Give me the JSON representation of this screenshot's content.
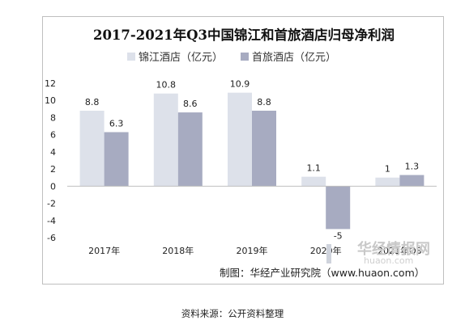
{
  "chart_data": {
    "type": "bar",
    "title": "2017-2021年Q3中国锦江和首旅酒店归母净利润",
    "categories": [
      "2017年",
      "2018年",
      "2019年",
      "2020年",
      "2021年Q3"
    ],
    "series": [
      {
        "name": "锦江酒店（亿元）",
        "values": [
          8.8,
          10.8,
          10.9,
          1.1,
          1
        ],
        "labels": [
          "8.8",
          "10.8",
          "10.9",
          "1.1",
          "1"
        ],
        "color": "#dde1ea"
      },
      {
        "name": "首旅酒店（亿元）",
        "values": [
          6.3,
          8.6,
          8.8,
          -5,
          1.3
        ],
        "labels": [
          "6.3",
          "8.6",
          "8.8",
          "-5",
          "1.3"
        ],
        "color": "#a7abc1"
      }
    ],
    "ylim": [
      -6,
      12
    ],
    "yticks": [
      "12",
      "10",
      "8",
      "6",
      "4",
      "2",
      "0",
      "-2",
      "-4",
      "-6"
    ],
    "ytick_values": [
      12,
      10,
      8,
      6,
      4,
      2,
      0,
      -2,
      -4,
      -6
    ],
    "grid": false,
    "legend_position": "top-center"
  },
  "credit": "制图：华经产业研究院（www.huaon.com）",
  "watermark": {
    "name": "华经情报网",
    "url": "huaon.com"
  },
  "source": "资料来源：公开资料整理"
}
